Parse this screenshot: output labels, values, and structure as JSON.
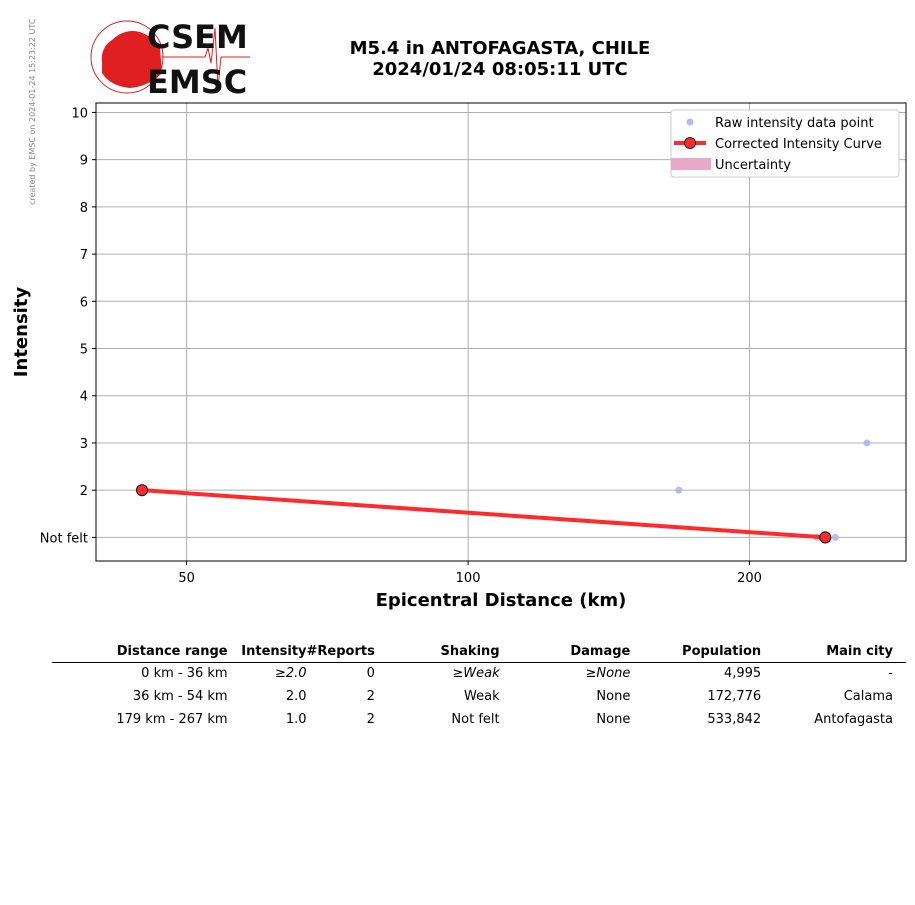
{
  "credit": "created by EMSC on 2024-01-24 15:23:22 UTC",
  "logo": {
    "top": "CSEM",
    "bottom": "EMSC"
  },
  "title": {
    "line1": "M5.4 in ANTOFAGASTA, CHILE",
    "line2": "2024/01/24 08:05:11 UTC"
  },
  "chart_data": {
    "type": "line",
    "xlabel": "Epicentral Distance (km)",
    "ylabel": "Intensity",
    "xscale": "log",
    "xlim": [
      40,
      294
    ],
    "ylim": [
      0.5,
      10.2
    ],
    "xticks": [
      50,
      100,
      200
    ],
    "xtick_labels": [
      "50",
      "100",
      "200"
    ],
    "yticks": [
      1,
      2,
      3,
      4,
      5,
      6,
      7,
      8,
      9,
      10
    ],
    "ytick_labels": [
      "Not felt",
      "2",
      "3",
      "4",
      "5",
      "6",
      "7",
      "8",
      "9",
      "10"
    ],
    "grid": true,
    "legend_position": "top-right",
    "series": [
      {
        "name": "Raw intensity data point",
        "type": "scatter",
        "color": "#b0bdec",
        "points": [
          [
            168,
            2
          ],
          [
            267,
            3
          ],
          [
            236,
            1
          ],
          [
            247,
            1
          ]
        ]
      },
      {
        "name": "Corrected Intensity Curve",
        "type": "line",
        "color": "#ff2a2a",
        "points": [
          [
            44.8,
            2
          ],
          [
            241,
            1
          ]
        ]
      },
      {
        "name": "Uncertainty",
        "type": "area",
        "color": "#e8a8c8",
        "points": []
      }
    ]
  },
  "table": {
    "headers": [
      "Distance range",
      "Intensity",
      "#Reports",
      "Shaking",
      "Damage",
      "Population",
      "Main city"
    ],
    "rows": [
      [
        "0 km -   36 km",
        "≥2.0",
        "0",
        "≥Weak",
        "≥None",
        "4,995",
        "-"
      ],
      [
        "36 km -   54 km",
        "2.0",
        "2",
        "Weak",
        "None",
        "172,776",
        "Calama"
      ],
      [
        "179 km -  267 km",
        "1.0",
        "2",
        "Not felt",
        "None",
        "533,842",
        "Antofagasta"
      ]
    ]
  }
}
